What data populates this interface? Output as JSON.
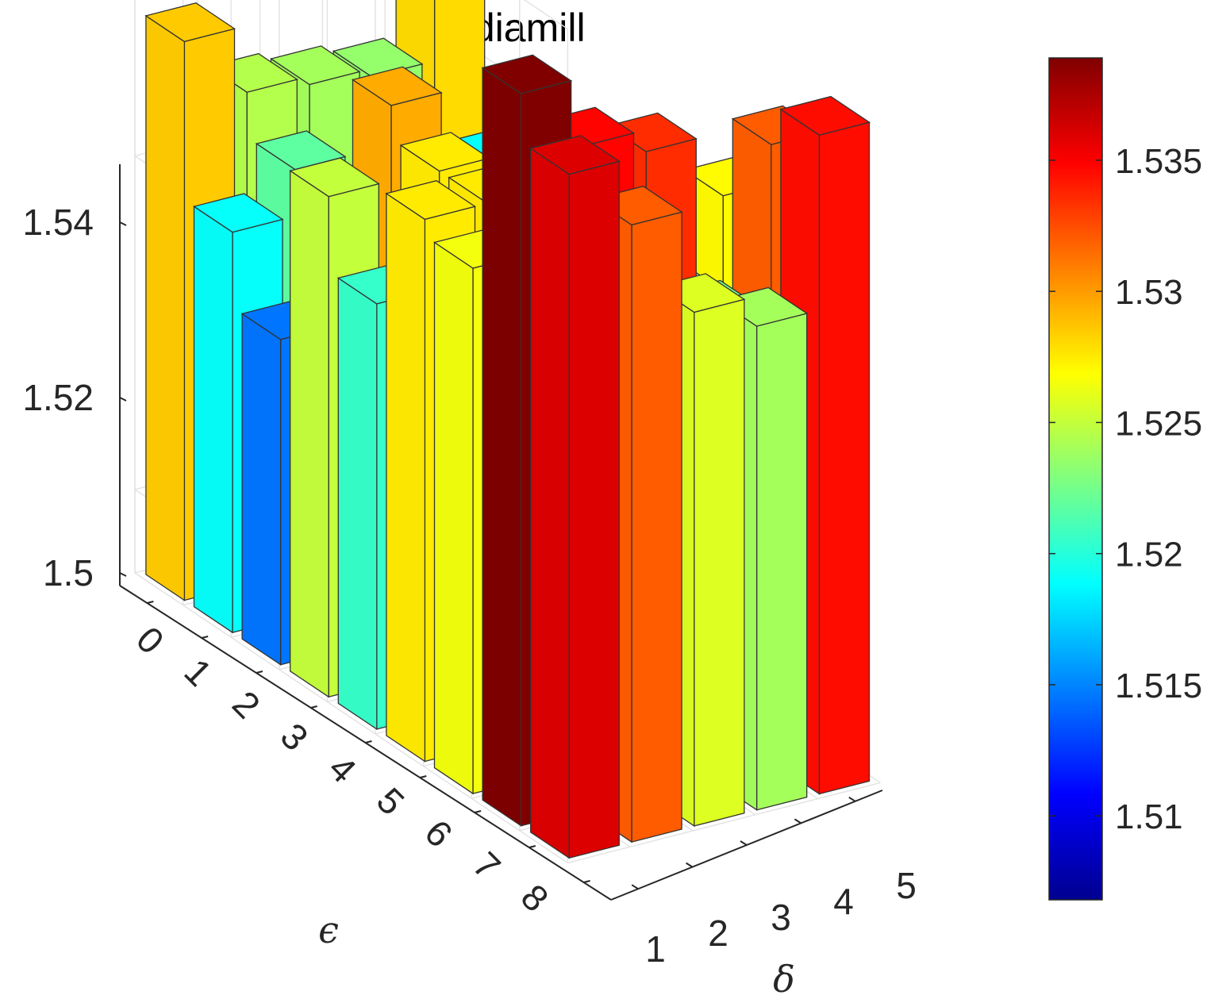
{
  "chart_data": {
    "type": "bar3",
    "title": "mediamill",
    "xlabel": "δ",
    "ylabel": "ϵ",
    "zlabel": "",
    "x_ticks": [
      "1",
      "2",
      "3",
      "4",
      "5"
    ],
    "y_ticks": [
      "0",
      "1",
      "2",
      "3",
      "4",
      "5",
      "6",
      "7",
      "8"
    ],
    "z_ticks": [
      "1.5",
      "1.52",
      "1.54"
    ],
    "zlim": [
      1.495,
      1.545
    ],
    "grid": true,
    "colormap": "jet",
    "colorbar": {
      "position": "right",
      "limits": [
        1.5068,
        1.5389
      ],
      "ticks": [
        "1.51",
        "1.515",
        "1.52",
        "1.525",
        "1.53",
        "1.535"
      ]
    },
    "series": [
      {
        "x": "1",
        "values": [
          1.5285,
          1.519,
          1.5145,
          1.525,
          1.5205,
          1.5275,
          1.5265,
          1.5389,
          1.536
        ]
      },
      {
        "x": "2",
        "values": [
          1.5245,
          1.5218,
          1.512,
          1.5295,
          1.5275,
          1.5275,
          1.5285,
          1.5348,
          1.532
        ]
      },
      {
        "x": "3",
        "values": [
          1.524,
          1.514,
          1.5195,
          1.5195,
          1.524,
          1.523,
          1.5258,
          1.5335,
          1.5258
        ]
      },
      {
        "x": "4",
        "values": [
          1.5235,
          1.513,
          1.508,
          1.511,
          1.515,
          1.521,
          1.522,
          1.5225,
          1.524
        ]
      },
      {
        "x": "5",
        "values": [
          1.528,
          1.519,
          1.52,
          1.512,
          1.52,
          1.523,
          1.527,
          1.532,
          1.5345
        ]
      }
    ]
  }
}
